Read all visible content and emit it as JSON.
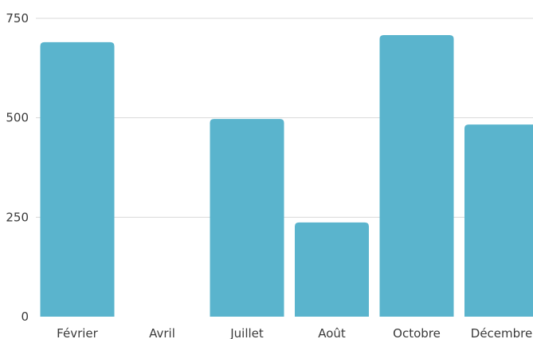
{
  "chart_data": {
    "type": "bar",
    "categories": [
      "Février",
      "Avril",
      "Juillet",
      "Août",
      "Octobre",
      "Décembre"
    ],
    "values": [
      690,
      0,
      497,
      237,
      708,
      483
    ],
    "yticks": [
      0,
      250,
      500,
      750
    ],
    "ylim": [
      0,
      750
    ],
    "grid": true,
    "bar_color": "#5ab4cd"
  }
}
